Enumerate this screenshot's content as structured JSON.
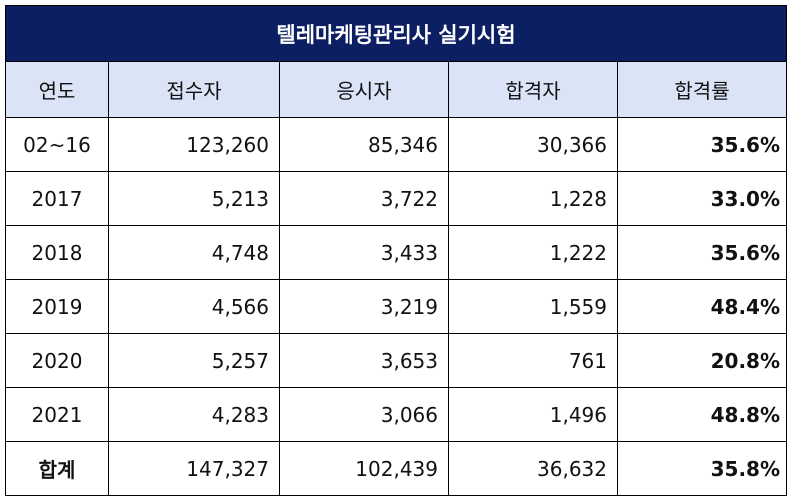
{
  "title": "텔레마케팅관리사 실기시험",
  "headers": [
    "연도",
    "접수자",
    "응시자",
    "합격자",
    "합격률"
  ],
  "rows": [
    {
      "year": "02~16",
      "applicants": "123,260",
      "examinees": "85,346",
      "passers": "30,366",
      "rate": "35.6%"
    },
    {
      "year": "2017",
      "applicants": "5,213",
      "examinees": "3,722",
      "passers": "1,228",
      "rate": "33.0%"
    },
    {
      "year": "2018",
      "applicants": "4,748",
      "examinees": "3,433",
      "passers": "1,222",
      "rate": "35.6%"
    },
    {
      "year": "2019",
      "applicants": "4,566",
      "examinees": "3,219",
      "passers": "1,559",
      "rate": "48.4%"
    },
    {
      "year": "2020",
      "applicants": "5,257",
      "examinees": "3,653",
      "passers": "761",
      "rate": "20.8%"
    },
    {
      "year": "2021",
      "applicants": "4,283",
      "examinees": "3,066",
      "passers": "1,496",
      "rate": "48.8%"
    }
  ],
  "total": {
    "year": "합계",
    "applicants": "147,327",
    "examinees": "102,439",
    "passers": "36,632",
    "rate": "35.8%"
  },
  "colors": {
    "title_bg": "#0b1f62",
    "title_text": "#ffffff",
    "header_bg": "#dbe4f6",
    "border": "#000000"
  }
}
